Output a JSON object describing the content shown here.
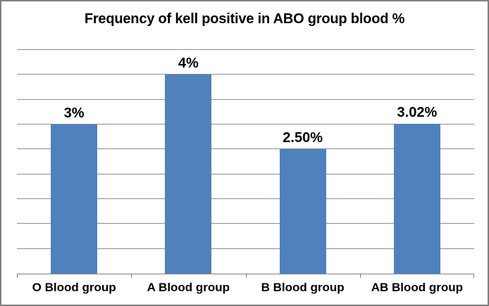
{
  "chart_data": {
    "type": "bar",
    "title": "Frequency of kell positive in ABO group blood %",
    "categories": [
      "O Blood group",
      "A Blood group",
      "B Blood group",
      "AB Blood group"
    ],
    "values": [
      3,
      4,
      2.5,
      3.02
    ],
    "data_labels": [
      "3%",
      "4%",
      "2.50%",
      "3.02%"
    ],
    "xlabel": "",
    "ylabel": "",
    "ylim": [
      0,
      4.5
    ],
    "gridline_step": 0.5,
    "grid": "horizontal",
    "legend": "none",
    "y_tick_labels_visible": false,
    "colors": {
      "bar": "#4F81BD",
      "gridline": "#8C8C8C",
      "axis": "#808080",
      "frame_border": "#808080",
      "background": "#FFFFFF",
      "text": "#000000"
    }
  }
}
